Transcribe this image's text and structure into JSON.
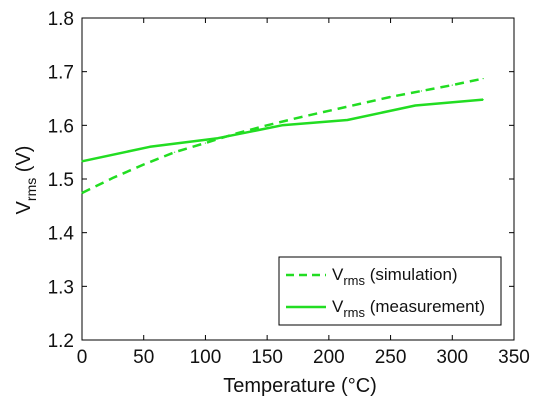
{
  "chart_data": {
    "type": "line",
    "xlabel": "Temperature (°C)",
    "ylabel": {
      "main": "V",
      "sub": "rms",
      "unit": " (V)"
    },
    "xlim": [
      0,
      350
    ],
    "ylim": [
      1.2,
      1.8
    ],
    "xticks": [
      0,
      50,
      100,
      150,
      200,
      250,
      300,
      350
    ],
    "xtick_labels": [
      "0",
      "50",
      "100",
      "150",
      "200",
      "250",
      "300",
      "350"
    ],
    "yticks": [
      1.2,
      1.3,
      1.4,
      1.5,
      1.6,
      1.7,
      1.8
    ],
    "ytick_labels": [
      "1.2",
      "1.3",
      "1.4",
      "1.5",
      "1.6",
      "1.7",
      "1.8"
    ],
    "grid": false,
    "legend_position": "bottom-right",
    "series": [
      {
        "name": "V_rms (simulation)",
        "legend": {
          "main": "V",
          "sub": "rms",
          "rest": " (simulation)"
        },
        "style": "dashed",
        "color": "#22dd22",
        "x": [
          0,
          25,
          50,
          75,
          100,
          125,
          150,
          175,
          200,
          225,
          250,
          275,
          300,
          325
        ],
        "y": [
          1.474,
          1.502,
          1.527,
          1.55,
          1.567,
          1.585,
          1.6,
          1.614,
          1.627,
          1.64,
          1.653,
          1.664,
          1.675,
          1.687
        ]
      },
      {
        "name": "V_rms (measurement)",
        "legend": {
          "main": "V",
          "sub": "rms",
          "rest": " (measurement)"
        },
        "style": "solid",
        "color": "#22dd22",
        "x": [
          0,
          55,
          110,
          162,
          215,
          270,
          325
        ],
        "y": [
          1.533,
          1.56,
          1.576,
          1.6,
          1.61,
          1.637,
          1.648
        ]
      }
    ]
  }
}
